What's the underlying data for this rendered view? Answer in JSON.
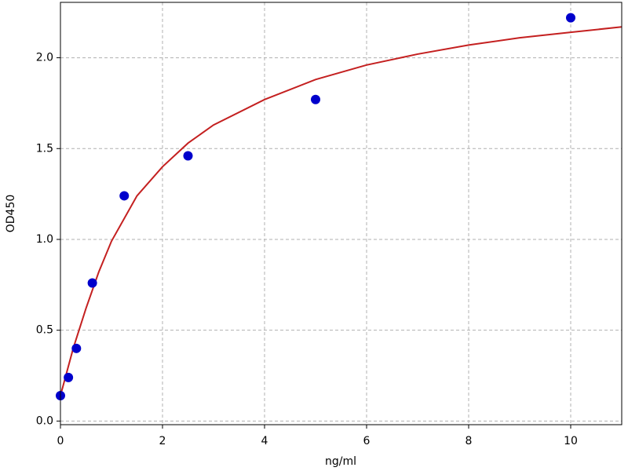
{
  "chart_data": {
    "type": "scatter",
    "xlabel": "ng/ml",
    "ylabel": "OD450",
    "xlim": [
      0,
      11
    ],
    "ylim": [
      -0.02,
      2.305
    ],
    "xticks": [
      0,
      2,
      4,
      6,
      8,
      10
    ],
    "yticks": [
      {
        "value": 0,
        "label": "0.0"
      },
      {
        "value": 0.5,
        "label": "0.5"
      },
      {
        "value": 1,
        "label": "1.0"
      },
      {
        "value": 1.5,
        "label": "1.5"
      },
      {
        "value": 2,
        "label": "2.0"
      }
    ],
    "grid": true,
    "series": [
      {
        "type": "scatter",
        "color": "#0000cc",
        "x": [
          0,
          0.156,
          0.3125,
          0.625,
          1.25,
          2.5,
          5,
          10
        ],
        "values": [
          0.14,
          0.24,
          0.4,
          0.76,
          1.24,
          1.46,
          1.77,
          2.22
        ]
      },
      {
        "type": "line",
        "color": "#c42020",
        "x": [
          0,
          0.25,
          0.5,
          0.75,
          1,
          1.5,
          2,
          2.5,
          3,
          4,
          5,
          6,
          7,
          8,
          9,
          10,
          11
        ],
        "values": [
          0.14,
          0.4,
          0.62,
          0.82,
          0.99,
          1.24,
          1.4,
          1.53,
          1.63,
          1.77,
          1.88,
          1.96,
          2.02,
          2.07,
          2.11,
          2.14,
          2.17
        ]
      }
    ]
  }
}
